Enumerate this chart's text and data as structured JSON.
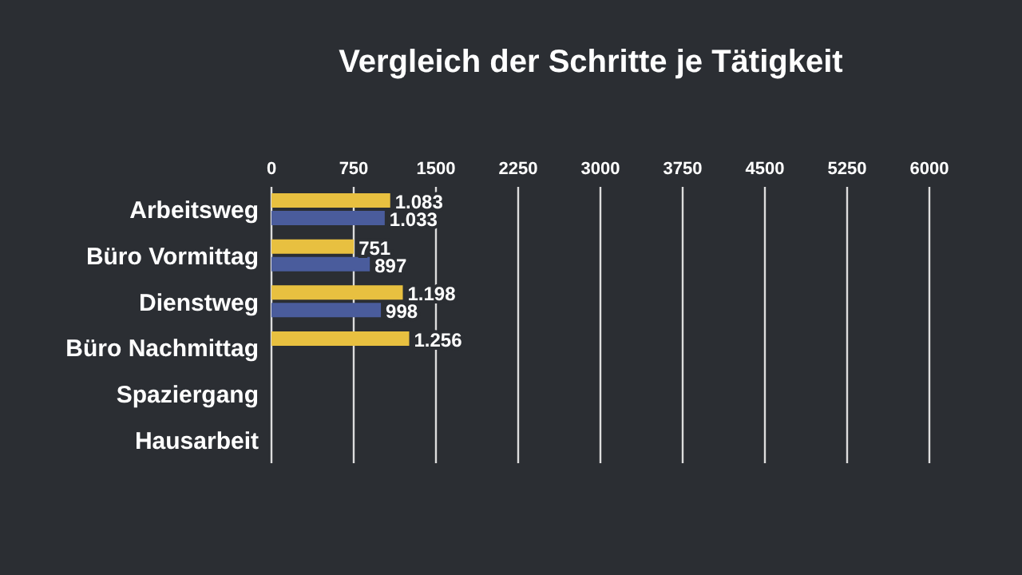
{
  "chart_data": {
    "type": "bar",
    "orientation": "horizontal",
    "title": "Vergleich der Schritte je Tätigkeit",
    "categories": [
      "Arbeitsweg",
      "Büro Vormittag",
      "Dienstweg",
      "Büro Nachmittag",
      "Spaziergang",
      "Hausarbeit"
    ],
    "series": [
      {
        "color": "#e8c040",
        "values": [
          1083,
          751,
          1198,
          1256,
          null,
          null
        ],
        "value_labels": [
          "1.083",
          "751",
          "1.198",
          "1.256",
          null,
          null
        ]
      },
      {
        "color": "#4a5c9c",
        "values": [
          1033,
          897,
          998,
          null,
          null,
          null
        ],
        "value_labels": [
          "1.033",
          "897",
          "998",
          null,
          null,
          null
        ]
      }
    ],
    "xlim": [
      0,
      6000
    ],
    "xticks": [
      0,
      750,
      1500,
      2250,
      3000,
      3750,
      4500,
      5250,
      6000
    ],
    "grid": "x",
    "legend": false
  }
}
